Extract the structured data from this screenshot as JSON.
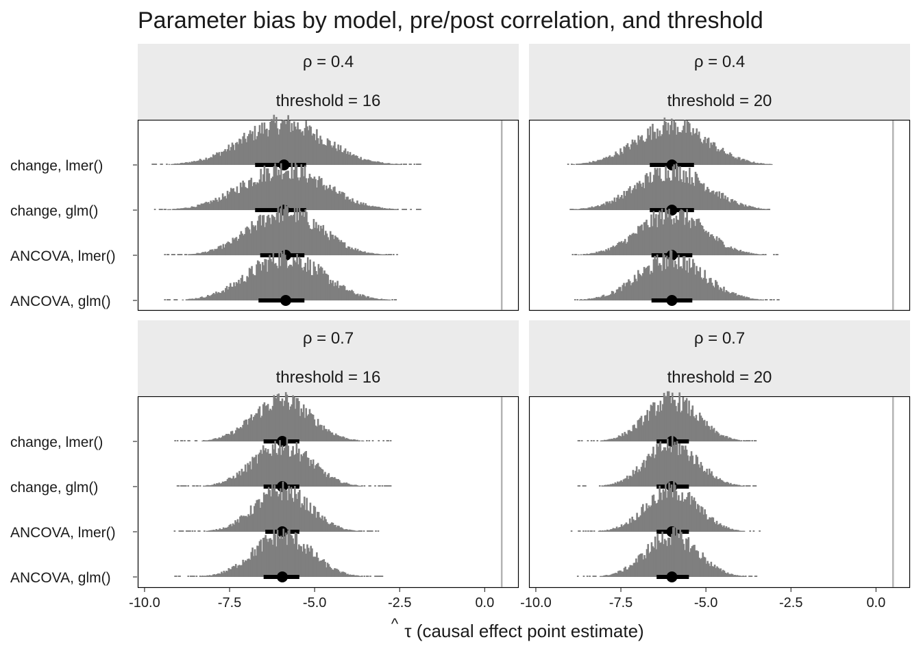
{
  "title": "Parameter bias by model, pre/post correlation, and threshold",
  "xlabel": "τ (causal effect point estimate)",
  "xlabel_hat": "^",
  "colors": {
    "strip_bg": "#ebebeb",
    "dots": "#7f7f7f",
    "interval": "#000000",
    "ref_line": "#b3b3b3",
    "panel_border": "#000000"
  },
  "chart_data": {
    "type": "scatter",
    "subtype": "dot-histogram with point estimate and interval",
    "facets_layout": "2 rows x 2 columns",
    "xlim": [
      -10.2,
      1.0
    ],
    "x_ticks": [
      "-10.0",
      "-7.5",
      "-5.0",
      "-2.5",
      "0.0"
    ],
    "x_tick_values": [
      -10.0,
      -7.5,
      -5.0,
      -2.5,
      0.0
    ],
    "reference_line_x": 0.5,
    "categories": [
      "change, lmer()",
      "change, glm()",
      "ANCOVA, lmer()",
      "ANCOVA, glm()"
    ],
    "panels": [
      {
        "strip_top": "ρ = 0.4",
        "strip_bottom": "threshold = 16",
        "series": [
          {
            "name": "change, lmer()",
            "point": -5.9,
            "interval": [
              -6.75,
              -5.25
            ],
            "range": [
              -9.8,
              -1.85
            ],
            "peak": 1.0
          },
          {
            "name": "change, glm()",
            "point": -5.9,
            "interval": [
              -6.75,
              -5.25
            ],
            "range": [
              -9.8,
              -1.85
            ],
            "peak": 1.0
          },
          {
            "name": "ANCOVA, lmer()",
            "point": -5.85,
            "interval": [
              -6.6,
              -5.3
            ],
            "range": [
              -9.4,
              -2.55
            ],
            "peak": 1.05
          },
          {
            "name": "ANCOVA, glm()",
            "point": -5.85,
            "interval": [
              -6.65,
              -5.3
            ],
            "range": [
              -9.4,
              -2.55
            ],
            "peak": 1.05
          }
        ]
      },
      {
        "strip_top": "ρ = 0.4",
        "strip_bottom": "threshold = 20",
        "series": [
          {
            "name": "change, lmer()",
            "point": -6.0,
            "interval": [
              -6.65,
              -5.35
            ],
            "range": [
              -9.05,
              -3.0
            ],
            "peak": 0.95
          },
          {
            "name": "change, glm()",
            "point": -6.0,
            "interval": [
              -6.65,
              -5.35
            ],
            "range": [
              -9.05,
              -3.0
            ],
            "peak": 0.95
          },
          {
            "name": "ANCOVA, lmer()",
            "point": -6.0,
            "interval": [
              -6.6,
              -5.4
            ],
            "range": [
              -8.95,
              -2.75
            ],
            "peak": 1.0
          },
          {
            "name": "ANCOVA, glm()",
            "point": -6.0,
            "interval": [
              -6.6,
              -5.4
            ],
            "range": [
              -8.95,
              -2.85
            ],
            "peak": 1.0
          }
        ]
      },
      {
        "strip_top": "ρ = 0.7",
        "strip_bottom": "threshold = 16",
        "series": [
          {
            "name": "change, lmer()",
            "point": -5.95,
            "interval": [
              -6.5,
              -5.45
            ],
            "range": [
              -9.1,
              -2.75
            ],
            "peak": 1.0
          },
          {
            "name": "change, glm()",
            "point": -5.95,
            "interval": [
              -6.5,
              -5.45
            ],
            "range": [
              -9.1,
              -2.75
            ],
            "peak": 1.0
          },
          {
            "name": "ANCOVA, lmer()",
            "point": -5.95,
            "interval": [
              -6.45,
              -5.45
            ],
            "range": [
              -9.15,
              -3.05
            ],
            "peak": 1.0
          },
          {
            "name": "ANCOVA, glm()",
            "point": -5.95,
            "interval": [
              -6.5,
              -5.45
            ],
            "range": [
              -9.1,
              -3.0
            ],
            "peak": 1.0
          }
        ]
      },
      {
        "strip_top": "ρ = 0.7",
        "strip_bottom": "threshold = 20",
        "series": [
          {
            "name": "change, lmer()",
            "point": -6.0,
            "interval": [
              -6.45,
              -5.5
            ],
            "range": [
              -8.75,
              -3.5
            ],
            "peak": 1.0
          },
          {
            "name": "change, glm()",
            "point": -6.0,
            "interval": [
              -6.45,
              -5.5
            ],
            "range": [
              -8.75,
              -3.5
            ],
            "peak": 1.0
          },
          {
            "name": "ANCOVA, lmer()",
            "point": -6.0,
            "interval": [
              -6.45,
              -5.5
            ],
            "range": [
              -8.95,
              -3.35
            ],
            "peak": 1.0
          },
          {
            "name": "ANCOVA, glm()",
            "point": -6.0,
            "interval": [
              -6.45,
              -5.5
            ],
            "range": [
              -8.8,
              -3.5
            ],
            "peak": 1.0
          }
        ]
      }
    ],
    "grid": false,
    "legend": "none"
  }
}
